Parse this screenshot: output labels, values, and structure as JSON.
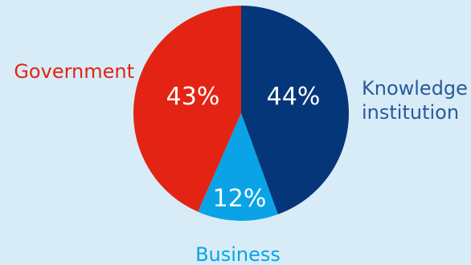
{
  "chart_data": {
    "type": "pie",
    "slices": [
      {
        "label": "Knowledge institution",
        "label_lines": [
          "Knowledge",
          "institution"
        ],
        "value": 44,
        "value_label": "44%",
        "color": "#06367a"
      },
      {
        "label": "Business",
        "label_lines": [
          "Business"
        ],
        "value": 12,
        "value_label": "12%",
        "color": "#0aa3e6"
      },
      {
        "label": "Government",
        "label_lines": [
          "Government"
        ],
        "value": 43,
        "value_label": "43%",
        "color": "#e32414"
      }
    ],
    "start_angle_deg": 0,
    "direction": "clockwise",
    "background_color": "#d8ecf8"
  }
}
